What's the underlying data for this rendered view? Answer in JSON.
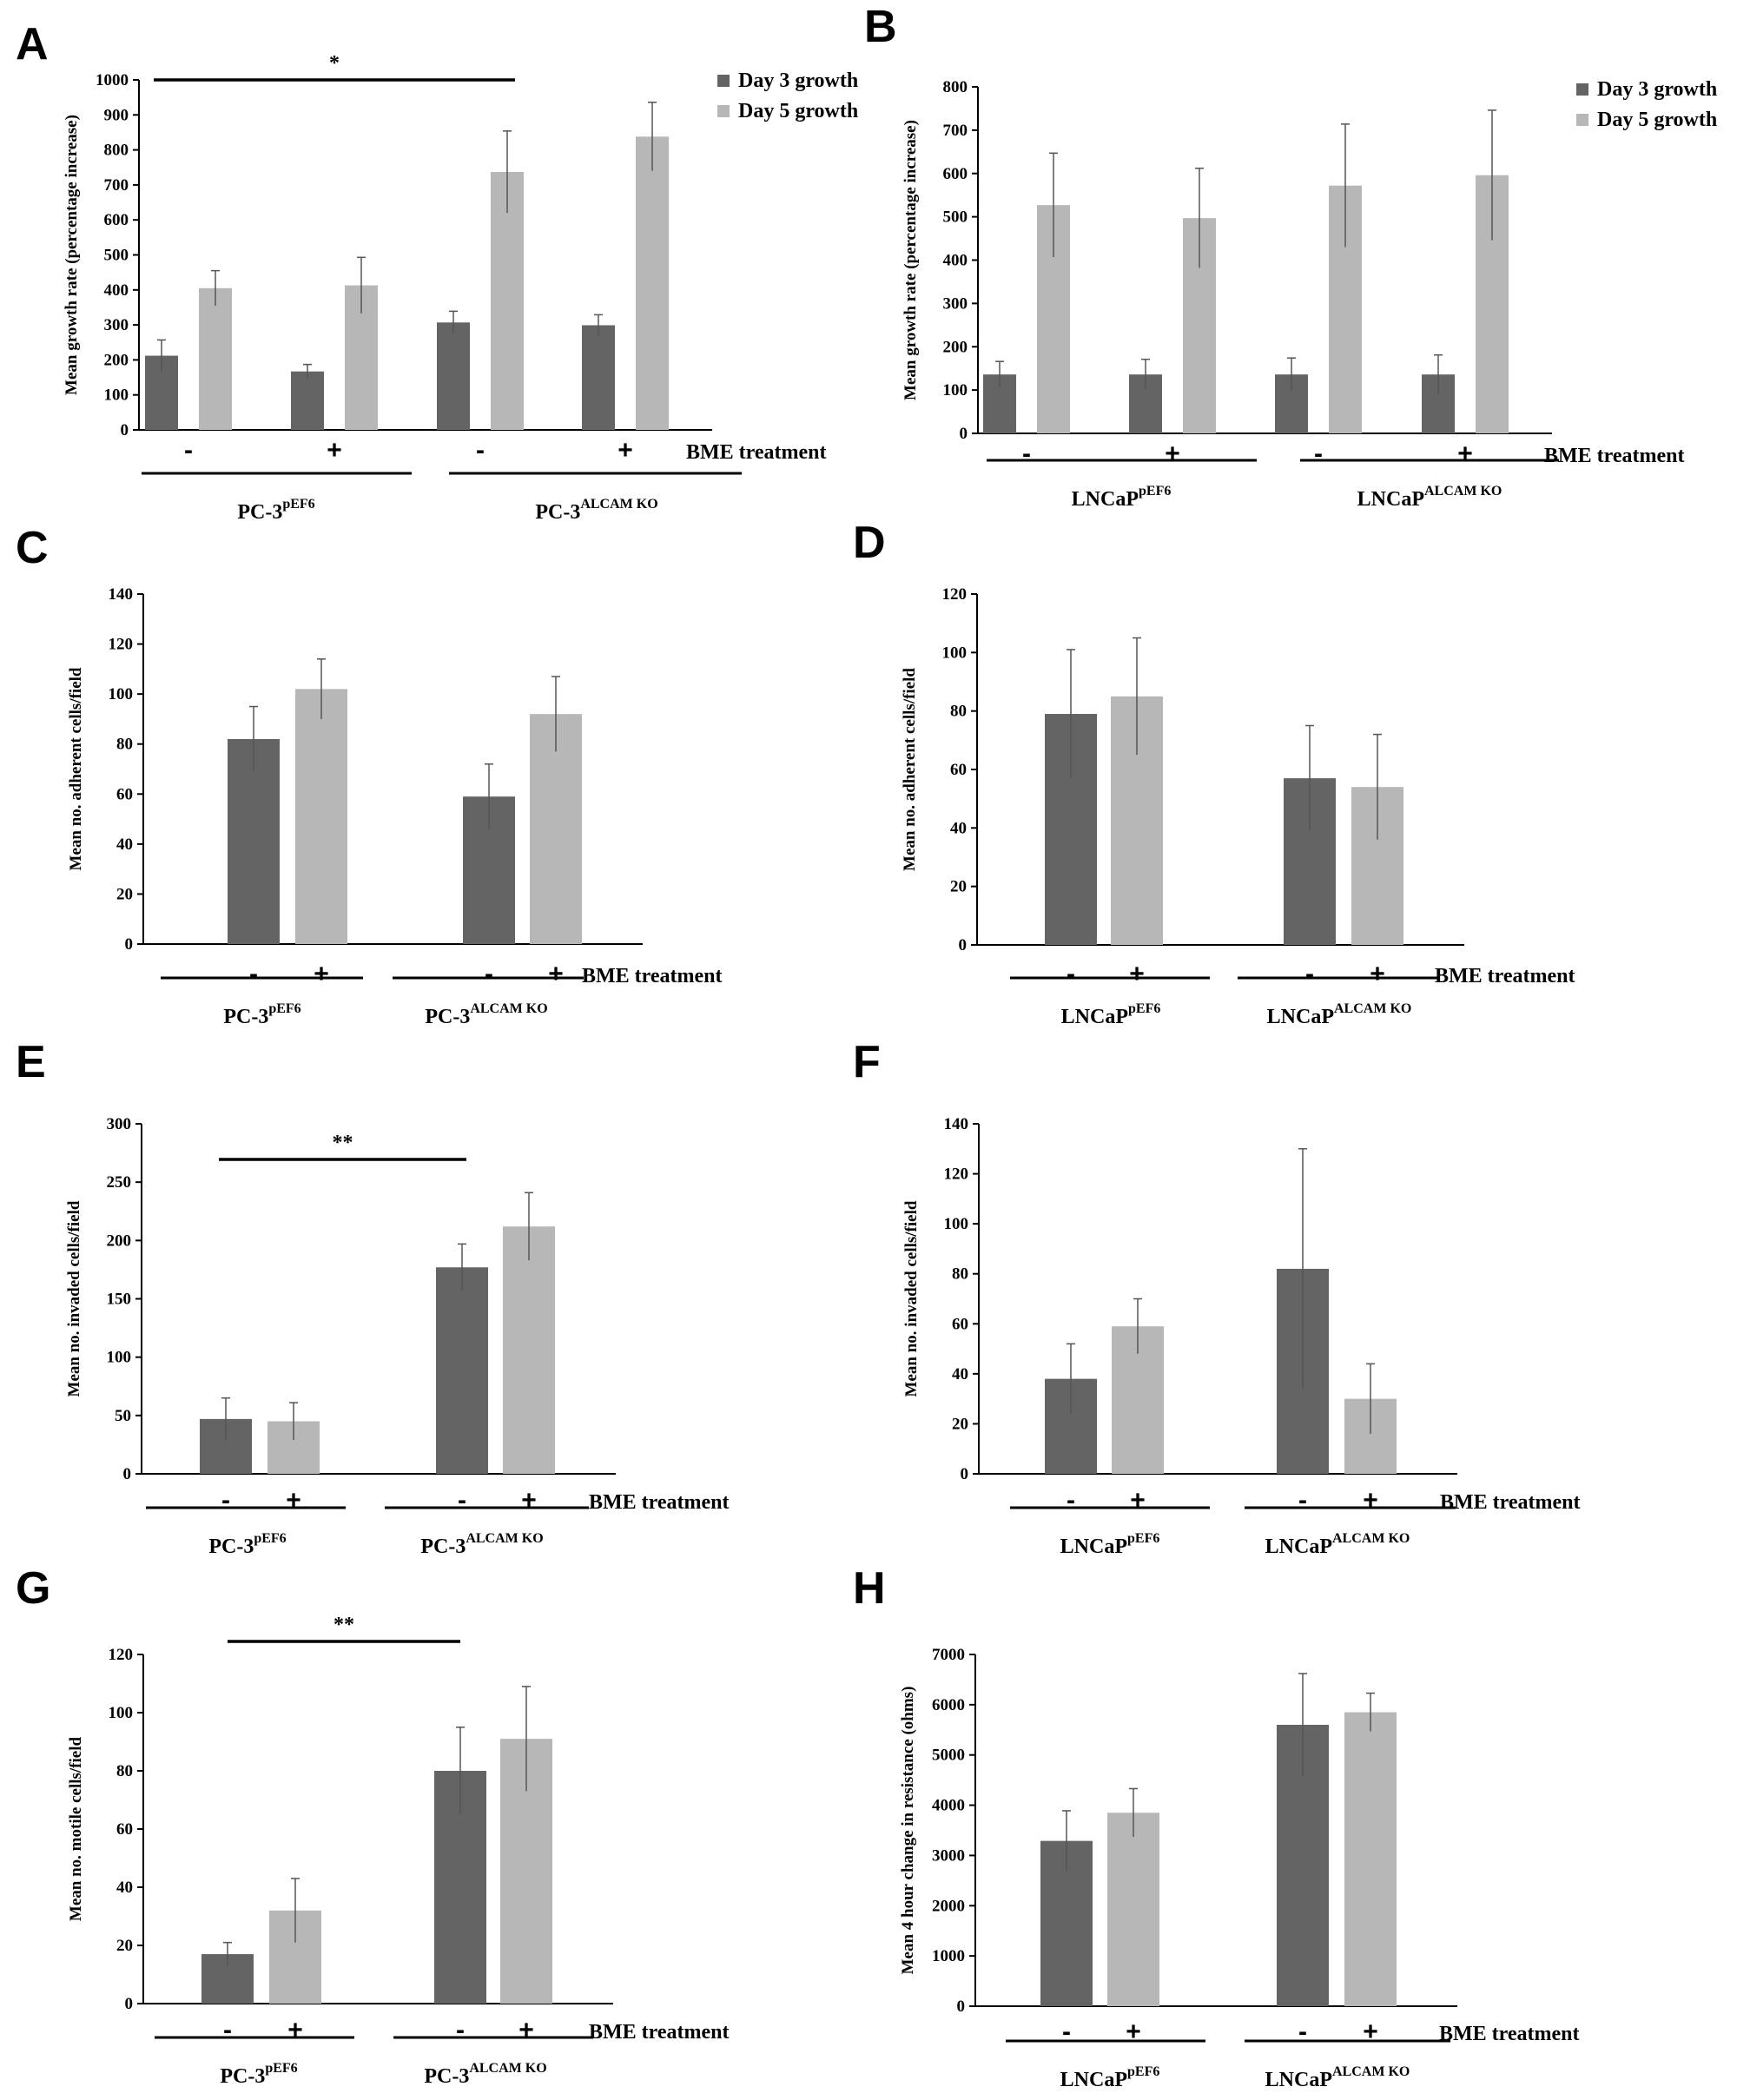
{
  "colors": {
    "day3": "#646464",
    "day5": "#b7b7b7",
    "axis": "#000000",
    "error": "#555555"
  },
  "treatment_label": "BME treatment",
  "chart_data": [
    {
      "panel": "A",
      "type": "bar",
      "ylabel": "Mean growth rate (percentage increase)",
      "ylim": [
        0,
        1000
      ],
      "yticks": [
        0,
        100,
        200,
        300,
        400,
        500,
        600,
        700,
        800,
        900,
        1000
      ],
      "categories": [
        "-",
        "+",
        "-",
        "+"
      ],
      "groups": [
        {
          "name": "PC-3",
          "sup": "pEF6"
        },
        {
          "name": "PC-3",
          "sup": "ALCAM KO"
        }
      ],
      "series": [
        {
          "name": "Day 3 growth",
          "values": [
            212,
            167,
            307,
            299
          ],
          "errors": [
            45,
            20,
            32,
            30
          ]
        },
        {
          "name": "Day 5 growth",
          "values": [
            405,
            413,
            737,
            838
          ],
          "errors": [
            50,
            80,
            117,
            98
          ]
        }
      ],
      "legend": "top-right",
      "significance": [
        {
          "label": "*",
          "from": 0,
          "to": 2
        }
      ]
    },
    {
      "panel": "B",
      "type": "bar",
      "ylabel": "Mean growth rate (percentage increase)",
      "ylim": [
        0,
        800
      ],
      "yticks": [
        0,
        100,
        200,
        300,
        400,
        500,
        600,
        700,
        800
      ],
      "categories": [
        "-",
        "+",
        "-",
        "+"
      ],
      "groups": [
        {
          "name": "LNCaP",
          "sup": "pEF6"
        },
        {
          "name": "LNCaP",
          "sup": "ALCAM KO"
        }
      ],
      "series": [
        {
          "name": "Day 3 growth",
          "values": [
            136,
            136,
            136,
            136
          ],
          "errors": [
            30,
            35,
            38,
            45
          ]
        },
        {
          "name": "Day 5 growth",
          "values": [
            527,
            497,
            572,
            596
          ],
          "errors": [
            120,
            115,
            142,
            150
          ]
        }
      ],
      "legend": "top-right",
      "significance": []
    },
    {
      "panel": "C",
      "type": "bar",
      "ylabel": "Mean no. adherent cells/field",
      "ylim": [
        0,
        140
      ],
      "yticks": [
        0,
        20,
        40,
        60,
        80,
        100,
        120,
        140
      ],
      "categories": [
        "-",
        "+",
        "-",
        "+"
      ],
      "groups": [
        {
          "name": "PC-3",
          "sup": "pEF6"
        },
        {
          "name": "PC-3",
          "sup": "ALCAM KO"
        }
      ],
      "series": [
        {
          "name": "",
          "values": [
            82,
            102,
            59,
            92
          ],
          "errors": [
            13,
            12,
            13,
            15
          ]
        }
      ],
      "significance": []
    },
    {
      "panel": "D",
      "type": "bar",
      "ylabel": "Mean no. adherent cells/field",
      "ylim": [
        0,
        120
      ],
      "yticks": [
        0,
        20,
        40,
        60,
        80,
        100,
        120
      ],
      "categories": [
        "-",
        "+",
        "-",
        "+"
      ],
      "groups": [
        {
          "name": "LNCaP",
          "sup": "pEF6"
        },
        {
          "name": "LNCaP",
          "sup": "ALCAM KO"
        }
      ],
      "series": [
        {
          "name": "",
          "values": [
            79,
            85,
            57,
            54
          ],
          "errors": [
            22,
            20,
            18,
            18
          ]
        }
      ],
      "significance": []
    },
    {
      "panel": "E",
      "type": "bar",
      "ylabel": "Mean no. invaded cells/field",
      "ylim": [
        0,
        300
      ],
      "yticks": [
        0,
        50,
        100,
        150,
        200,
        250,
        300
      ],
      "categories": [
        "-",
        "+",
        "-",
        "+"
      ],
      "groups": [
        {
          "name": "PC-3",
          "sup": "pEF6"
        },
        {
          "name": "PC-3",
          "sup": "ALCAM KO"
        }
      ],
      "series": [
        {
          "name": "",
          "values": [
            47,
            45,
            177,
            212
          ],
          "errors": [
            18,
            16,
            20,
            29
          ]
        }
      ],
      "significance": [
        {
          "label": "**",
          "from": 0,
          "to": 2
        }
      ]
    },
    {
      "panel": "F",
      "type": "bar",
      "ylabel": "Mean no. invaded cells/field",
      "ylim": [
        0,
        140
      ],
      "yticks": [
        0,
        20,
        40,
        60,
        80,
        100,
        120,
        140
      ],
      "categories": [
        "-",
        "+",
        "-",
        "+"
      ],
      "groups": [
        {
          "name": "LNCaP",
          "sup": "pEF6"
        },
        {
          "name": "LNCaP",
          "sup": "ALCAM KO"
        }
      ],
      "series": [
        {
          "name": "",
          "values": [
            38,
            59,
            82,
            30
          ],
          "errors": [
            14,
            11,
            48,
            14
          ]
        }
      ],
      "significance": []
    },
    {
      "panel": "G",
      "type": "bar",
      "ylabel": "Mean no. motile cells/field",
      "ylim": [
        0,
        120
      ],
      "yticks": [
        0,
        20,
        40,
        60,
        80,
        100,
        120
      ],
      "categories": [
        "-",
        "+",
        "-",
        "+"
      ],
      "groups": [
        {
          "name": "PC-3",
          "sup": "pEF6"
        },
        {
          "name": "PC-3",
          "sup": "ALCAM KO"
        }
      ],
      "series": [
        {
          "name": "",
          "values": [
            17,
            32,
            80,
            91
          ],
          "errors": [
            4,
            11,
            15,
            18
          ]
        }
      ],
      "significance": [
        {
          "label": "**",
          "from": 0,
          "to": 2
        }
      ]
    },
    {
      "panel": "H",
      "type": "bar",
      "ylabel": "Mean 4 hour change in resistance (ohms)",
      "ylim": [
        0,
        7000
      ],
      "yticks": [
        0,
        1000,
        2000,
        3000,
        4000,
        5000,
        6000,
        7000
      ],
      "categories": [
        "-",
        "+",
        "-",
        "+"
      ],
      "groups": [
        {
          "name": "LNCaP",
          "sup": "pEF6"
        },
        {
          "name": "LNCaP",
          "sup": "ALCAM KO"
        }
      ],
      "series": [
        {
          "name": "",
          "values": [
            3290,
            3850,
            5600,
            5850
          ],
          "errors": [
            600,
            480,
            1020,
            380
          ]
        }
      ],
      "significance": []
    }
  ]
}
